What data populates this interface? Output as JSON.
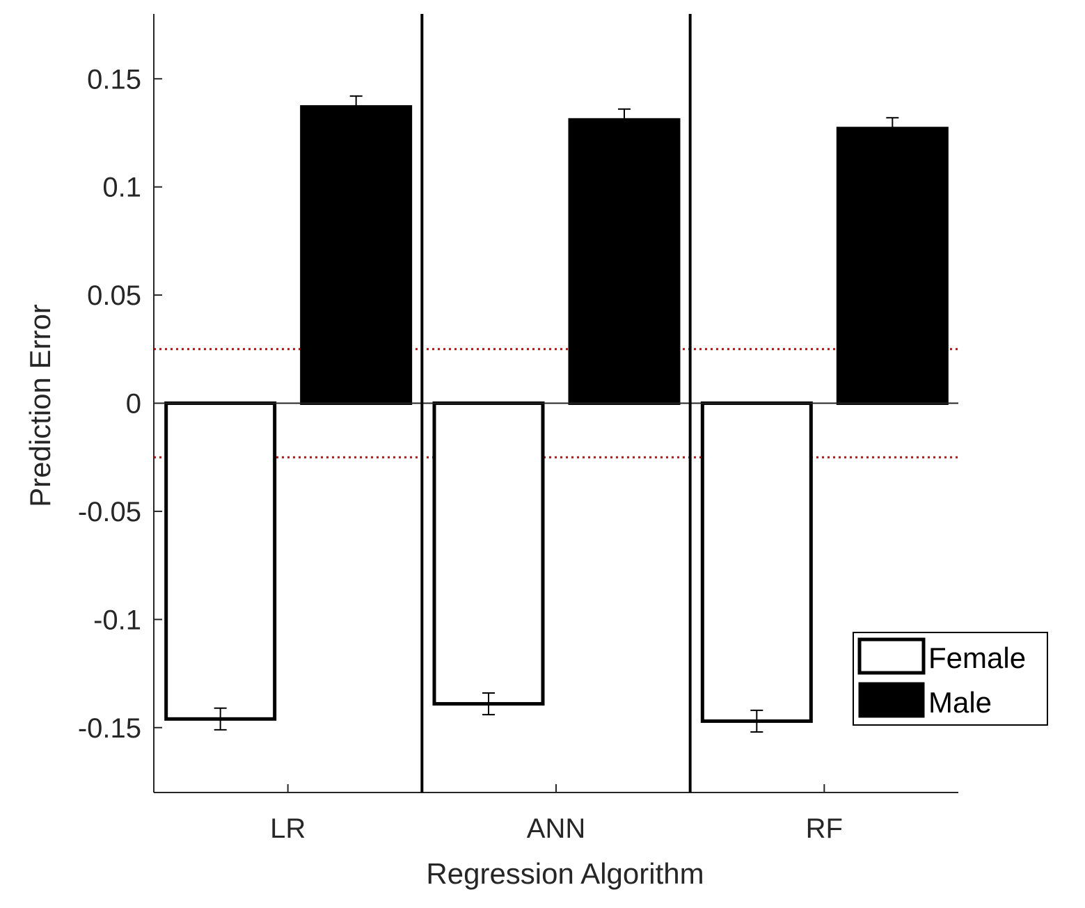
{
  "chart_data": {
    "type": "bar",
    "title": "",
    "xlabel": "Regression Algorithm",
    "ylabel": "Prediction Error",
    "categories": [
      "LR",
      "ANN",
      "RF"
    ],
    "series": [
      {
        "name": "Female",
        "fill": "#ffffff",
        "stroke": "#000000",
        "values": [
          -0.146,
          -0.139,
          -0.147
        ],
        "errors": [
          0.005,
          0.005,
          0.005
        ]
      },
      {
        "name": "Male",
        "fill": "#000000",
        "stroke": "#000000",
        "values": [
          0.137,
          0.131,
          0.127
        ],
        "errors": [
          0.005,
          0.005,
          0.005
        ]
      }
    ],
    "ylim": [
      -0.18,
      0.18
    ],
    "yticks": [
      "-0.15",
      "-0.1",
      "-0.05",
      "0",
      "0.05",
      "0.1",
      "0.15"
    ],
    "ytick_values": [
      -0.15,
      -0.1,
      -0.05,
      0,
      0.05,
      0.1,
      0.15
    ],
    "reference_lines": {
      "values": [
        0.025,
        -0.025
      ],
      "color": "#e00000",
      "style": "dotted"
    },
    "separators": [
      "LR|ANN",
      "ANN|RF"
    ],
    "grid": false,
    "legend": "bottom-right"
  }
}
